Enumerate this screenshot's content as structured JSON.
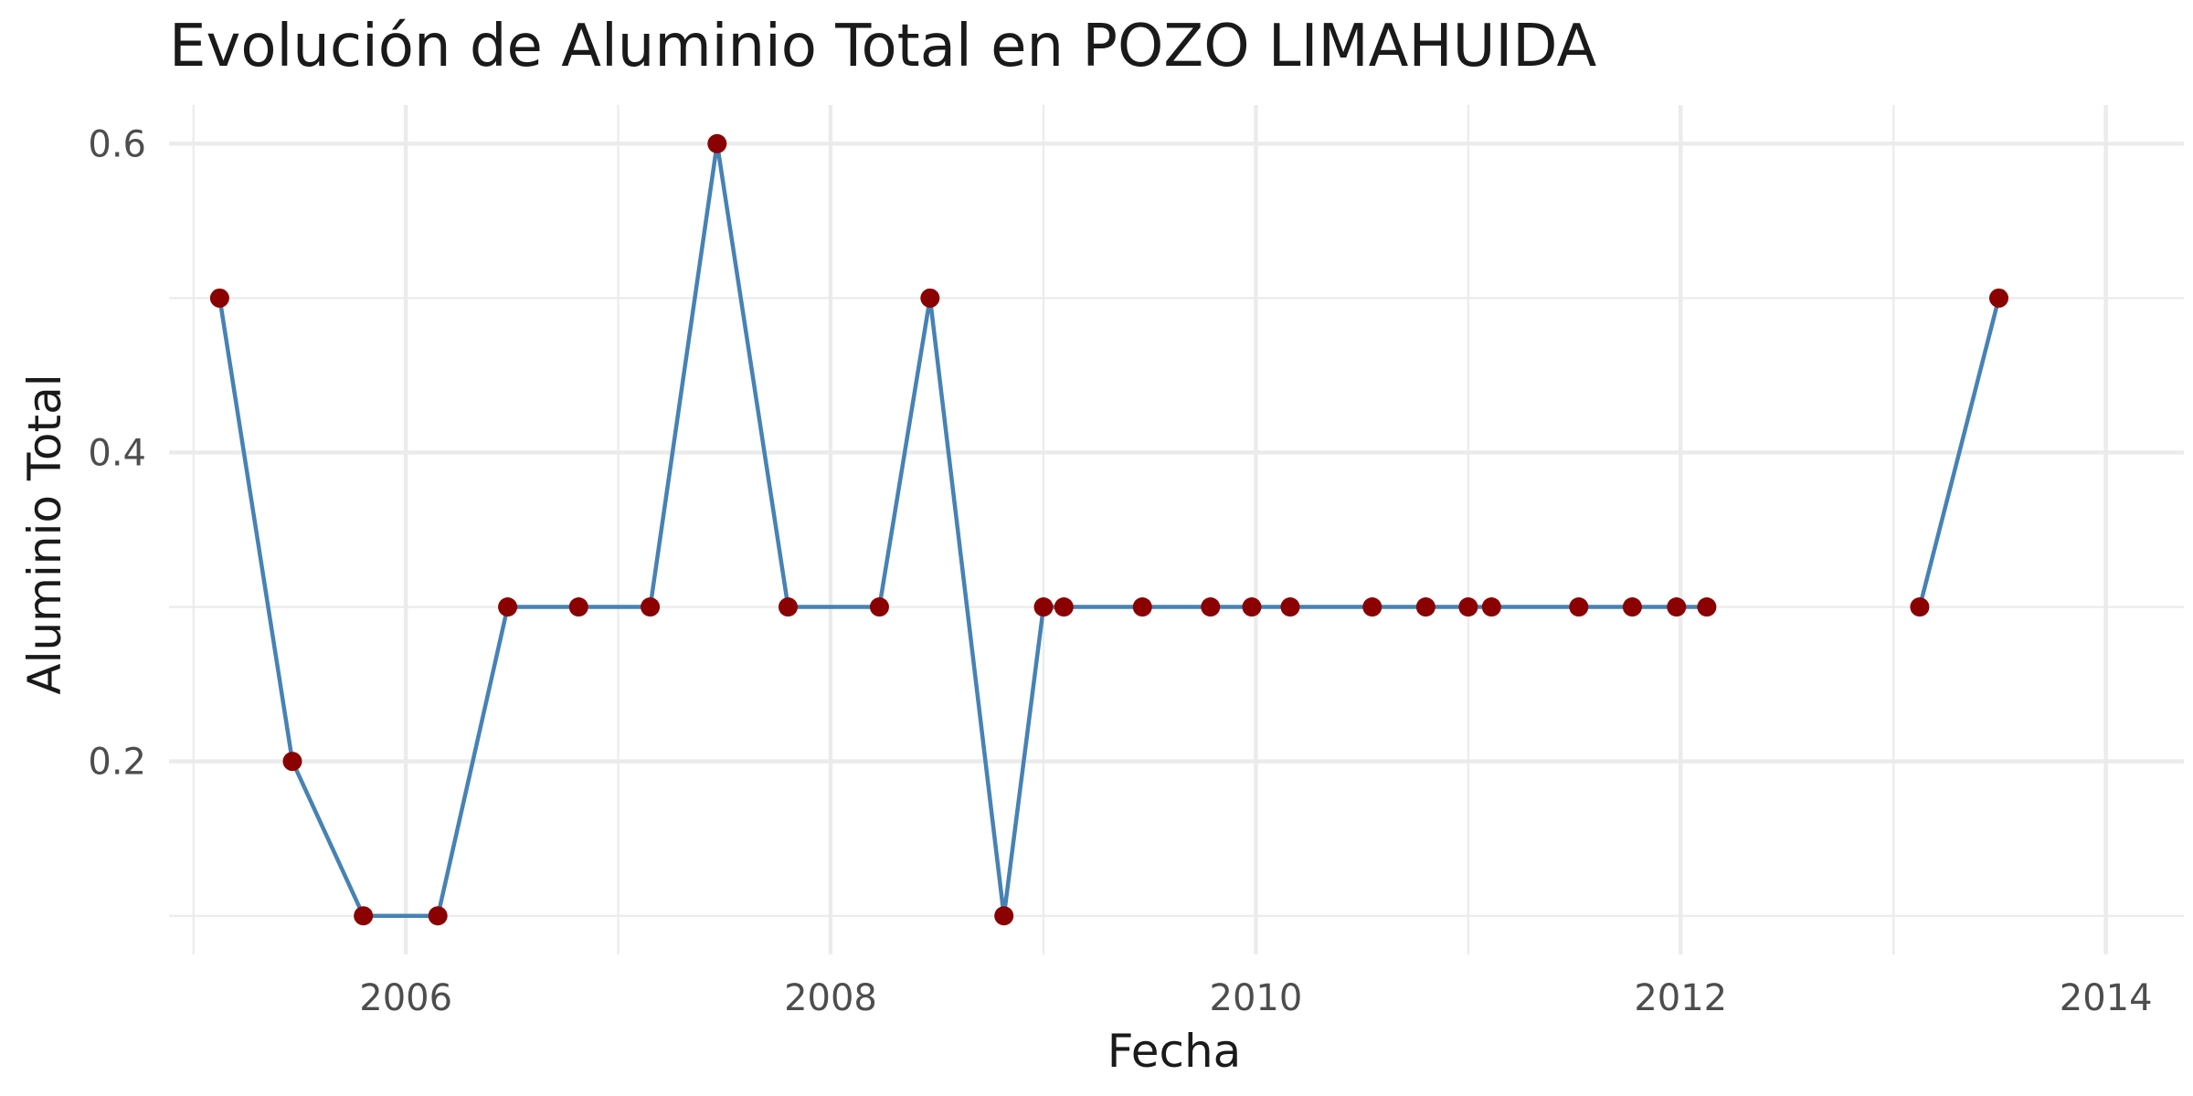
{
  "chart_data": {
    "type": "line",
    "title": "Evolución de Aluminio Total en POZO LIMAHUIDA",
    "xlabel": "Fecha",
    "ylabel": "Aluminio Total",
    "x_ticks": [
      "2006",
      "2008",
      "2010",
      "2012",
      "2014"
    ],
    "y_ticks": [
      "0.2",
      "0.4",
      "0.6"
    ],
    "xlim": [
      "2004-11-20",
      "2014-05-15"
    ],
    "ylim": [
      0.075,
      0.625
    ],
    "grid": true,
    "colors": {
      "line": "#4682B4",
      "point": "#8B0000",
      "grid": "#EBEBEB"
    },
    "series": [
      {
        "x": [
          "2005-02-15",
          "2005-06-20",
          "2005-10-20",
          "2006-02-25",
          "2006-06-25",
          "2006-10-25",
          "2007-02-25",
          "2007-06-20",
          "2007-10-20",
          "2008-03-25",
          "2008-06-20",
          "2008-10-25",
          "2009-01-01",
          "2009-02-05",
          "2009-06-20",
          "2009-10-15",
          "2009-12-25",
          "2010-03-01",
          "2010-07-20",
          "2010-10-20",
          "2011-01-01",
          "2011-02-10",
          "2011-07-10",
          "2011-10-10",
          "2011-12-25",
          "2012-02-15",
          "2013-02-15",
          "2013-07-01"
        ],
        "y": [
          0.5,
          0.2,
          0.1,
          0.1,
          0.3,
          0.3,
          0.3,
          0.6,
          0.3,
          0.3,
          0.5,
          0.1,
          0.3,
          0.3,
          0.3,
          0.3,
          0.3,
          0.3,
          0.3,
          0.3,
          0.3,
          0.3,
          0.3,
          0.3,
          0.3,
          0.3,
          0.3,
          0.5
        ],
        "line_break_after_index": 25
      }
    ]
  }
}
